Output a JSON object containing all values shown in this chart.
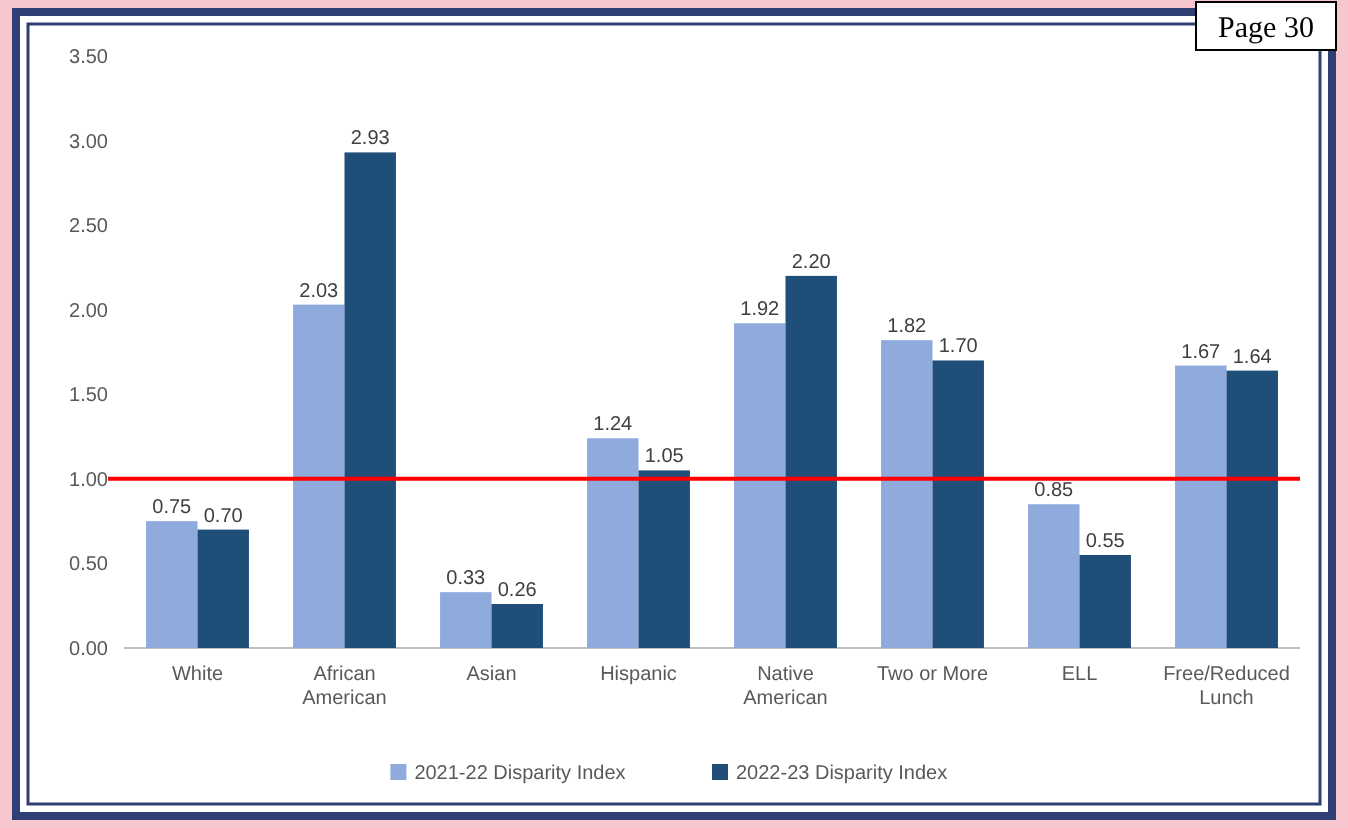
{
  "chart_data": {
    "type": "bar",
    "categories": [
      "White",
      "African American",
      "Asian",
      "Hispanic",
      "Native American",
      "Two or More",
      "ELL",
      "Free/Reduced Lunch"
    ],
    "series": [
      {
        "name": "2021-22 Disparity Index",
        "color": "#8faadc",
        "values": [
          0.75,
          2.03,
          0.33,
          1.24,
          1.92,
          1.82,
          0.85,
          1.67
        ]
      },
      {
        "name": "2022-23 Disparity Index",
        "color": "#1f4e79",
        "values": [
          0.7,
          2.93,
          0.26,
          1.05,
          2.2,
          1.7,
          0.55,
          1.64
        ]
      }
    ],
    "value_labels": [
      [
        "0.75",
        "2.03",
        "0.33",
        "1.24",
        "1.92",
        "1.82",
        "0.85",
        "1.67"
      ],
      [
        "0.70",
        "2.93",
        "0.26",
        "1.05",
        "2.20",
        "1.70",
        "0.55",
        "1.64"
      ]
    ],
    "ylim": [
      0,
      3.5
    ],
    "yticks": [
      {
        "value": 0,
        "label": "0.00"
      },
      {
        "value": 0.5,
        "label": "0.50"
      },
      {
        "value": 1,
        "label": "1.00"
      },
      {
        "value": 1.5,
        "label": "1.50"
      },
      {
        "value": 2,
        "label": "2.00"
      },
      {
        "value": 2.5,
        "label": "2.50"
      },
      {
        "value": 3,
        "label": "3.00"
      },
      {
        "value": 3.5,
        "label": "3.50"
      }
    ],
    "ref_lines": [
      {
        "axis": "y",
        "value": 1,
        "color": "#ff0000"
      }
    ],
    "legend": "bottom",
    "grid": false,
    "annotations": [
      "Page 30"
    ]
  }
}
